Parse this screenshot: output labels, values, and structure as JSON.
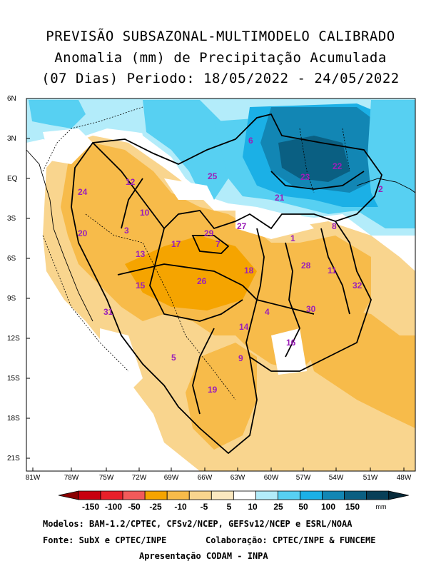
{
  "title": {
    "line1": "PREVISÃO SUBSAZONAL-MULTIMODELO CALIBRADO",
    "line2": "Anomalia (mm) de Precipitação Acumulada",
    "line3": "(07 Dias) Periodo: 18/05/2022 - 24/05/2022"
  },
  "axes": {
    "lat_labels": [
      "6N",
      "3N",
      "EQ",
      "3S",
      "6S",
      "9S",
      "12S",
      "15S",
      "18S",
      "21S"
    ],
    "lon_labels": [
      "81W",
      "78W",
      "75W",
      "72W",
      "69W",
      "66W",
      "63W",
      "60W",
      "57W",
      "54W",
      "51W",
      "48W"
    ]
  },
  "basins": [
    "1",
    "2",
    "3",
    "4",
    "5",
    "6",
    "7",
    "8",
    "9",
    "10",
    "11",
    "12",
    "13",
    "14",
    "15",
    "16",
    "17",
    "18",
    "19",
    "20",
    "21",
    "22",
    "23",
    "24",
    "25",
    "26",
    "27",
    "28",
    "29",
    "30",
    "31",
    "32"
  ],
  "legend": {
    "labels": [
      "-150",
      "-100",
      "-50",
      "-25",
      "-10",
      "-5",
      "5",
      "10",
      "25",
      "50",
      "100",
      "150"
    ],
    "unit": "mm",
    "colors": [
      "#c8000e",
      "#e8202a",
      "#f25a5a",
      "#f5a400",
      "#f7bb4a",
      "#f9d58e",
      "#fbe8bf",
      "#ffffff",
      "#b3ecfa",
      "#57d0f2",
      "#1bb0e6",
      "#1286b4",
      "#0a5f82",
      "#083f58"
    ]
  },
  "footer": {
    "models": "Modelos: BAM-1.2/CPTEC, CFSv2/NCEP, GEFSv12/NCEP e ESRL/NOAA",
    "source": "Fonte: SubX e CPTEC/INPE",
    "collab": "Colaboração: CPTEC/INPE & FUNCEME",
    "presentation": "Apresentação CODAM - INPA"
  }
}
